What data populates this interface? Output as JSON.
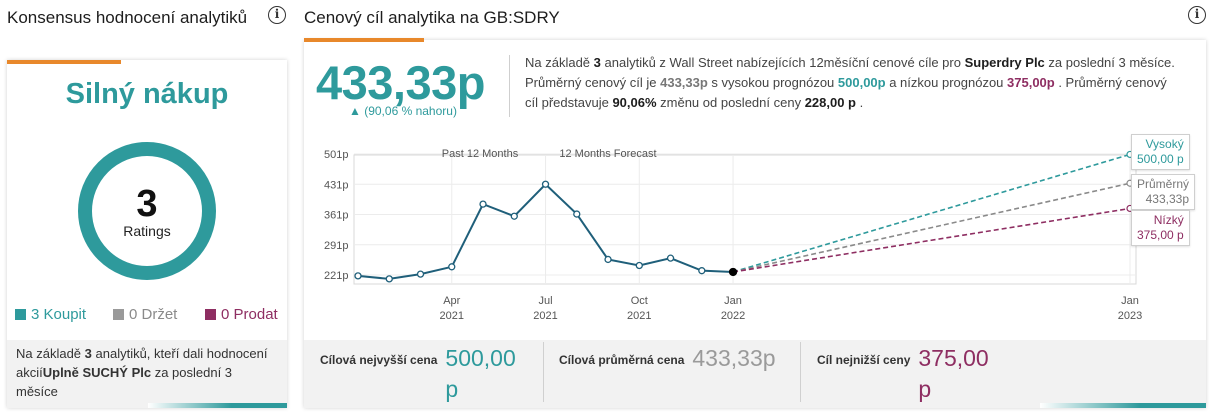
{
  "consensus": {
    "title": "Konsensus hodnocení analytiků",
    "rating": "Silný nákup",
    "count": "3",
    "count_label": "Ratings",
    "legend": [
      {
        "label": "3 Koupit",
        "color": "#2e9a9c",
        "text_color": "#2e9a9c"
      },
      {
        "label": "0 Držet",
        "color": "#9a9a9a",
        "text_color": "#8a8a8a"
      },
      {
        "label": "0 Prodat",
        "color": "#8e2e62",
        "text_color": "#8e2e62"
      }
    ],
    "footnote_prefix": "Na základě ",
    "footnote_count": "3",
    "footnote_mid": " analytiků, kteří dali hodnocení akcií",
    "footnote_company": "Uplně SUCHÝ Plc",
    "footnote_suffix": " za poslední 3 měsíce",
    "ring_color": "#2e9a9c",
    "buy_fraction": 1.0
  },
  "target": {
    "title": "Cenový cíl analytika na GB:SDRY",
    "average_price": "433,33p",
    "upside": "▲ (90,06 % nahoru)",
    "summary": {
      "p1": "Na základě ",
      "analysts": "3",
      "p2": " analytiků z Wall Street nabízejících 12měsíční cenové cíle pro ",
      "company": "Superdry Plc",
      "p3": " za poslední 3 měsíce. Průměrný cenový cíl je ",
      "avg": "433,33p",
      "p4": " s vysokou prognózou ",
      "high": "500,00p",
      "p5": " a nízkou prognózou ",
      "low": "375,00p",
      "p6": " . Průměrný cenový cíl představuje ",
      "pct": "90,06%",
      "p7": " změnu od poslední ceny ",
      "last": "228,00 p",
      "p8": " ."
    },
    "callouts": {
      "high_label": "Vysoký",
      "high_value": "500,00 p",
      "avg_label": "Průměrný",
      "avg_value": "433,33p",
      "low_label": "Nízký",
      "low_value": "375,00 p"
    },
    "bottom": [
      {
        "label": "Cílová nejvyšší cena",
        "value": "500,00 p",
        "color": "#2e9a9c"
      },
      {
        "label": "Cílová průměrná cena",
        "value": "433,33p",
        "color": "#9a9a9a"
      },
      {
        "label": "Cíl nejnižší ceny",
        "value": "375,00 p",
        "color": "#8e2e62"
      }
    ]
  },
  "chart_data": {
    "type": "line",
    "y_ticks": [
      "501p",
      "431p",
      "361p",
      "291p",
      "221p"
    ],
    "y_tick_values": [
      501,
      431,
      361,
      291,
      221
    ],
    "ylim": [
      200,
      520
    ],
    "section_labels": [
      "Past 12 Months",
      "12 Months Forecast"
    ],
    "x_ticks": [
      {
        "month": "Apr",
        "year": "2021",
        "t": 3
      },
      {
        "month": "Jul",
        "year": "2021",
        "t": 6
      },
      {
        "month": "Oct",
        "year": "2021",
        "t": 9
      },
      {
        "month": "Jan",
        "year": "2022",
        "t": 12
      },
      {
        "month": "Jan",
        "year": "2023",
        "t": 24.7
      }
    ],
    "series": [
      {
        "t": [
          0,
          1,
          2,
          3,
          4,
          5,
          6,
          7,
          8,
          9,
          10,
          11,
          12
        ],
        "values": [
          219,
          212,
          223,
          240,
          385,
          357,
          431,
          362,
          257,
          243,
          260,
          231,
          228
        ],
        "color": "#1f5f7a"
      }
    ],
    "forecast": [
      {
        "name": "Vysoký",
        "start": 228,
        "end": 500,
        "color": "#2e9a9c"
      },
      {
        "name": "Průměrný",
        "start": 228,
        "end": 433.33,
        "color": "#8a8a8a"
      },
      {
        "name": "Nízký",
        "start": 228,
        "end": 375,
        "color": "#8e2e62"
      }
    ],
    "forecast_t_end": 24.7,
    "grid": true
  }
}
